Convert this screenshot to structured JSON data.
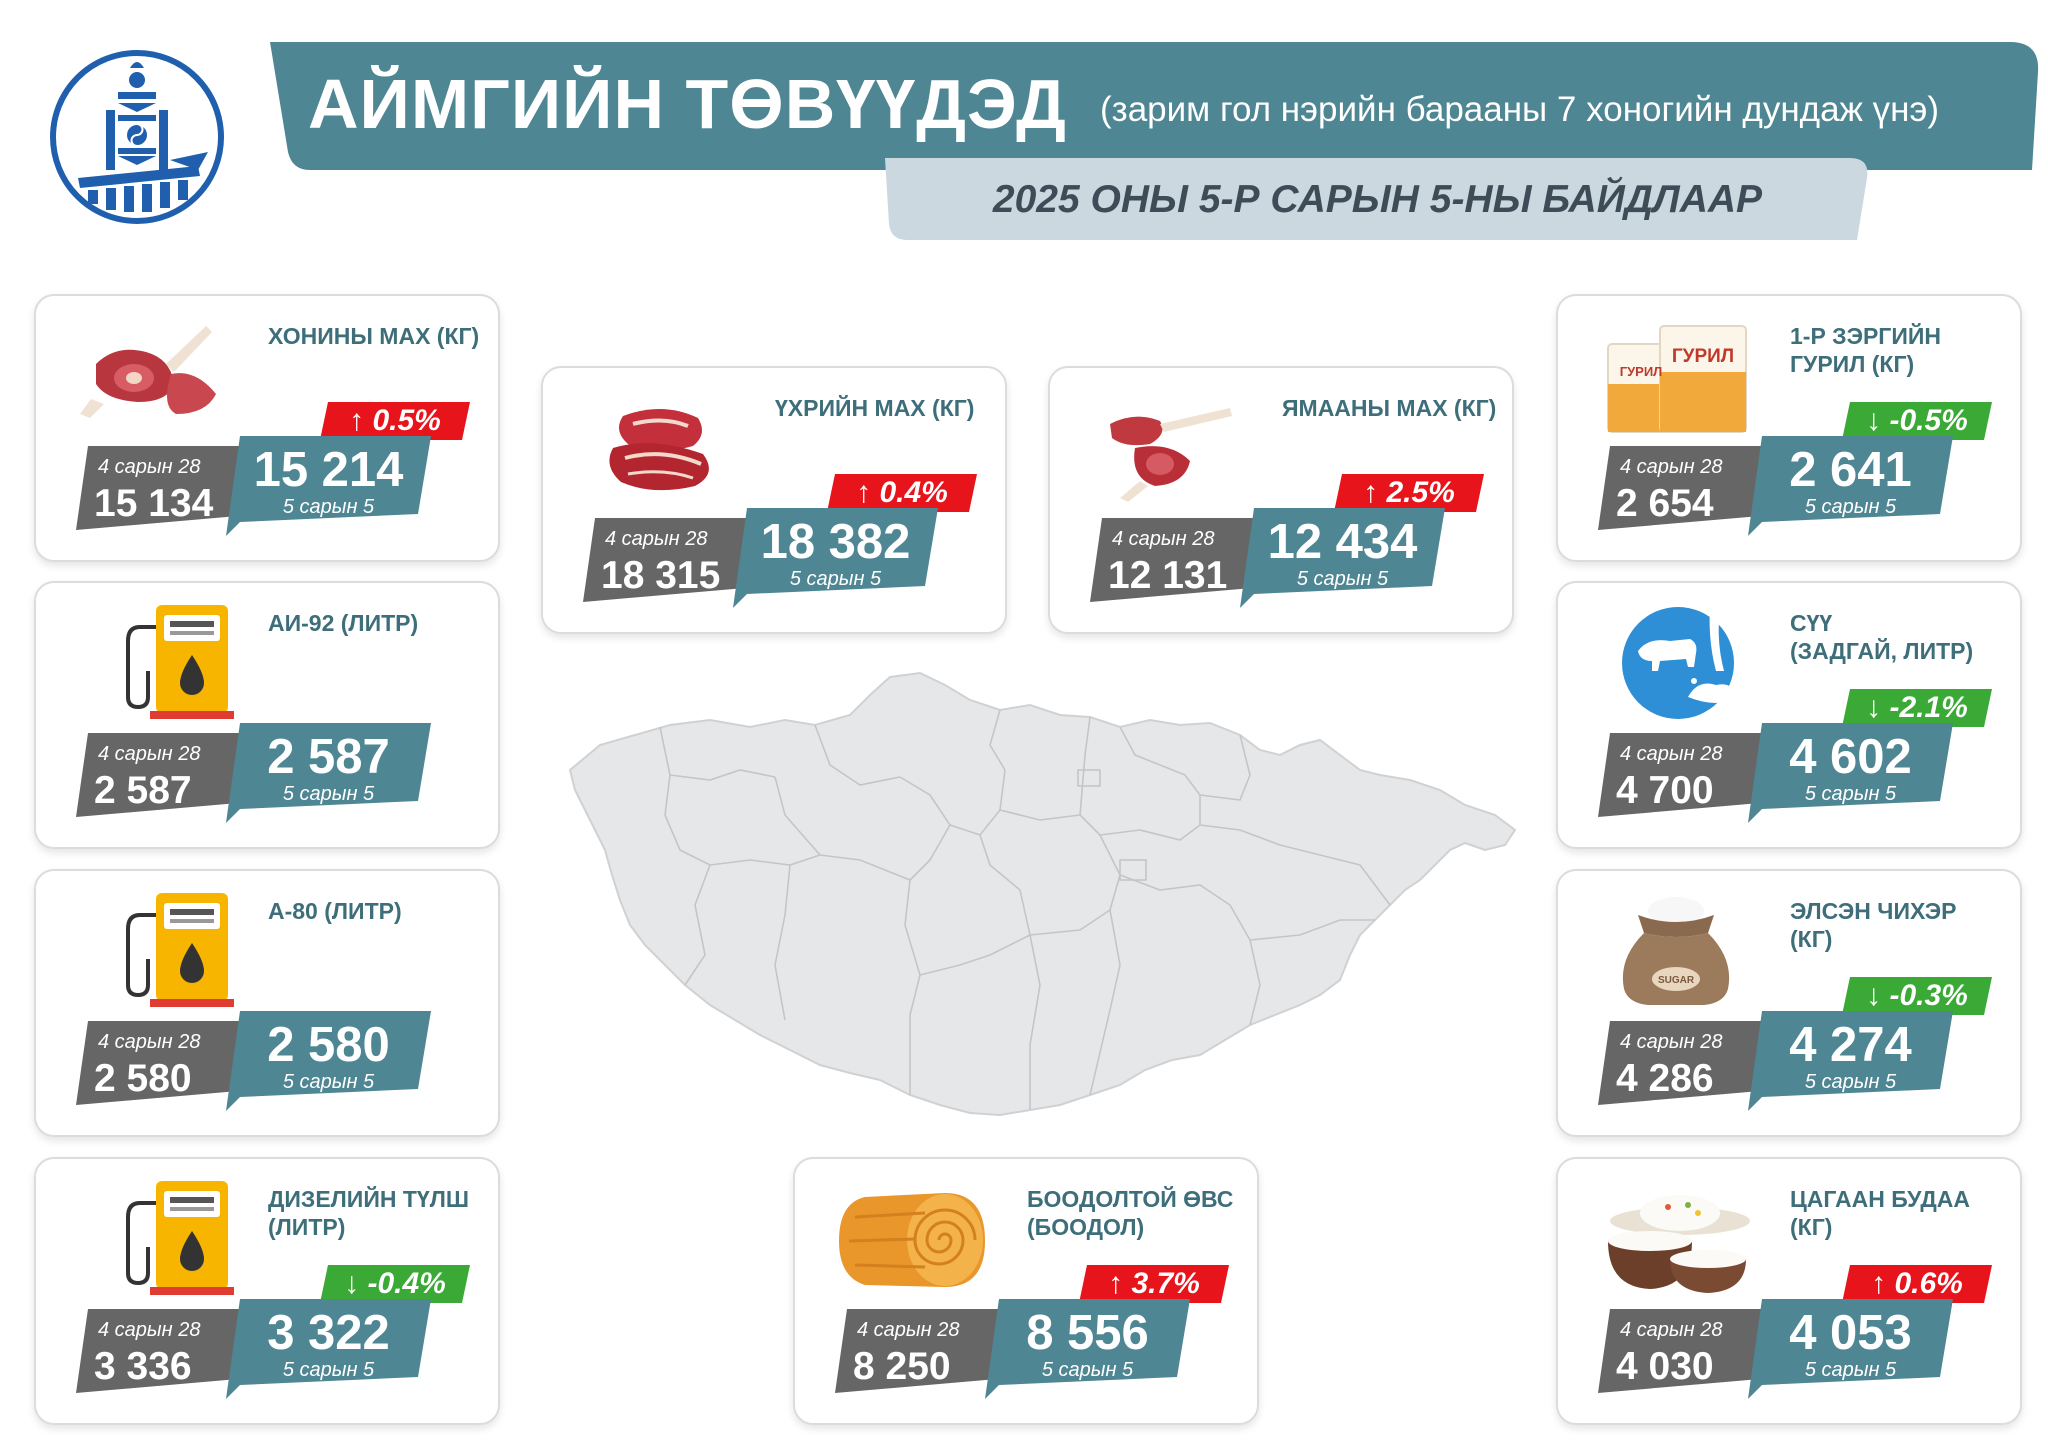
{
  "header": {
    "title": "АЙМГИЙН ТӨВҮҮДЭД",
    "subtitle": "(зарим гол нэрийн барааны 7 хоногийн дундаж үнэ)",
    "date_line": "2025 ОНЫ 5-Р САРЫН 5-НЫ БАЙДЛААР"
  },
  "colors": {
    "teal": "#4e8693",
    "gray_box": "#666666",
    "up_red": "#e8141b",
    "down_green": "#3aa935",
    "date_band": "#cbd8df"
  },
  "items": [
    {
      "label": "ХОНИНЫ МАХ (КГ)",
      "icon": "mutton-icon",
      "direction": "up",
      "change": "↑ 0.5%",
      "prev_date": "4 сарын 28",
      "prev_value": "15 134",
      "curr_value": "15 214",
      "curr_date": "5 сарын 5"
    },
    {
      "label": "ҮХРИЙН МАХ (КГ)",
      "icon": "beef-icon",
      "direction": "up",
      "change": "↑ 0.4%",
      "prev_date": "4 сарын 28",
      "prev_value": "18 315",
      "curr_value": "18 382",
      "curr_date": "5 сарын 5"
    },
    {
      "label": "ЯМААНЫ МАХ (КГ)",
      "icon": "goat-meat-icon",
      "direction": "up",
      "change": "↑ 2.5%",
      "prev_date": "4 сарын 28",
      "prev_value": "12 131",
      "curr_value": "12 434",
      "curr_date": "5 сарын 5"
    },
    {
      "label": "1-Р ЗЭРГИЙН\nГУРИЛ (КГ)",
      "icon": "flour-bag-icon",
      "direction": "down",
      "change": "↓ -0.5%",
      "prev_date": "4 сарын 28",
      "prev_value": "2 654",
      "curr_value": "2 641",
      "curr_date": "5 сарын 5",
      "flour_text": "ГУРИЛ"
    },
    {
      "label": "АИ-92 (ЛИТР)",
      "icon": "fuel-pump-icon",
      "direction": "none",
      "change": "",
      "prev_date": "4 сарын 28",
      "prev_value": "2 587",
      "curr_value": "2 587",
      "curr_date": "5 сарын 5"
    },
    {
      "label": "СҮҮ\n(ЗАДГАЙ, ЛИТР)",
      "icon": "milk-icon",
      "direction": "down",
      "change": "↓ -2.1%",
      "prev_date": "4 сарын 28",
      "prev_value": "4 700",
      "curr_value": "4 602",
      "curr_date": "5 сарын 5"
    },
    {
      "label": "А-80 (ЛИТР)",
      "icon": "fuel-pump-icon",
      "direction": "none",
      "change": "",
      "prev_date": "4 сарын 28",
      "prev_value": "2 580",
      "curr_value": "2 580",
      "curr_date": "5 сарын 5"
    },
    {
      "label": "ЭЛСЭН ЧИХЭР\n (КГ)",
      "icon": "sugar-sack-icon",
      "direction": "down",
      "change": "↓ -0.3%",
      "prev_date": "4 сарын 28",
      "prev_value": "4 286",
      "curr_value": "4 274",
      "curr_date": "5 сарын 5",
      "sack_text": "SUGAR"
    },
    {
      "label": "ДИЗЕЛИЙН ТҮЛШ\n(ЛИТР)",
      "icon": "fuel-pump-icon",
      "direction": "down",
      "change": "↓ -0.4%",
      "prev_date": "4 сарын 28",
      "prev_value": "3 336",
      "curr_value": "3 322",
      "curr_date": "5 сарын 5"
    },
    {
      "label": "БООДОЛТОЙ ӨВС\n(БООДОЛ)",
      "icon": "hay-bale-icon",
      "direction": "up",
      "change": "↑ 3.7%",
      "prev_date": "4 сарын 28",
      "prev_value": "8 250",
      "curr_value": "8 556",
      "curr_date": "5 сарын 5"
    },
    {
      "label": "ЦАГААН БУДАА\n(КГ)",
      "icon": "rice-bowl-icon",
      "direction": "up",
      "change": "↑ 0.6%",
      "prev_date": "4 сарын 28",
      "prev_value": "4 030",
      "curr_value": "4 053",
      "curr_date": "5 сарын 5"
    }
  ]
}
